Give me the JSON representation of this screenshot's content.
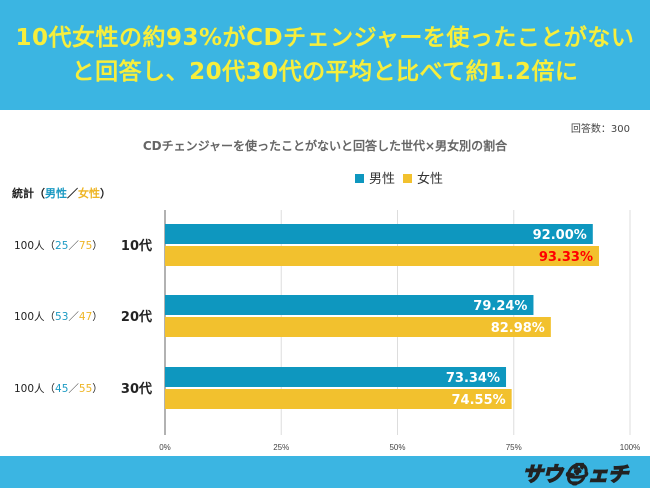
{
  "header": {
    "line1": "10代女性の約93%がCDチェンジャーを使ったことがない",
    "line2": "と回答し、20代30代の平均と比べて約1.2倍に"
  },
  "response_count": "回答数：300",
  "stats_header": {
    "label": "統計（",
    "male": "男性",
    "sep": "／",
    "female": "女性",
    "close": "）"
  },
  "logo_text": "サウチェチ",
  "colors": {
    "male": "#0e97bf",
    "female": "#f2c12e",
    "highlight": "#ff0000",
    "header_bg": "#3bb5e2",
    "header_text": "#f7ee3c"
  },
  "chart_data": {
    "type": "bar",
    "orientation": "horizontal",
    "title": "CDチェンジャーを使ったことがないと回答した世代×男女別の割合",
    "categories": [
      "10代",
      "20代",
      "30代"
    ],
    "row_stats": [
      {
        "total": "100人（",
        "male": "25",
        "sep": "／",
        "female": "75",
        "close": "）"
      },
      {
        "total": "100人（",
        "male": "53",
        "sep": "／",
        "female": "47",
        "close": "）"
      },
      {
        "total": "100人（",
        "male": "45",
        "sep": "／",
        "female": "55",
        "close": "）"
      }
    ],
    "series": [
      {
        "name": "男性",
        "values": [
          92.0,
          79.24,
          73.34
        ],
        "labels": [
          "92.00%",
          "79.24%",
          "73.34%"
        ]
      },
      {
        "name": "女性",
        "values": [
          93.33,
          82.98,
          74.55
        ],
        "labels": [
          "93.33%",
          "82.98%",
          "74.55%"
        ]
      }
    ],
    "xlim": [
      0,
      100
    ],
    "xticks": [
      "0%",
      "25%",
      "50%",
      "75%",
      "100%"
    ],
    "grid": true,
    "legend": "top"
  }
}
